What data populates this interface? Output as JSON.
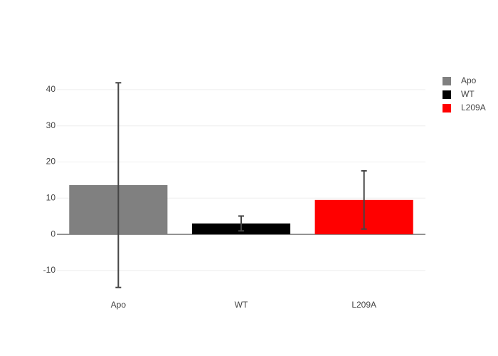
{
  "chart_data": {
    "type": "bar",
    "categories": [
      "Apo",
      "WT",
      "L209A"
    ],
    "series": [
      {
        "name": "Apo",
        "color": "#808080",
        "values": [
          13.6,
          null,
          null
        ],
        "errors": [
          28.3,
          null,
          null
        ]
      },
      {
        "name": "WT",
        "color": "#000000",
        "values": [
          null,
          3.0,
          null
        ],
        "errors": [
          null,
          2.05,
          null
        ]
      },
      {
        "name": "L209A",
        "color": "#ff0000",
        "values": [
          null,
          null,
          9.5
        ],
        "errors": [
          null,
          null,
          8.05
        ]
      }
    ],
    "ylim": [
      -17.9,
      45.1
    ],
    "yticks": [
      -10,
      0,
      10,
      20,
      30,
      40
    ],
    "grid": true,
    "legend": "right"
  }
}
